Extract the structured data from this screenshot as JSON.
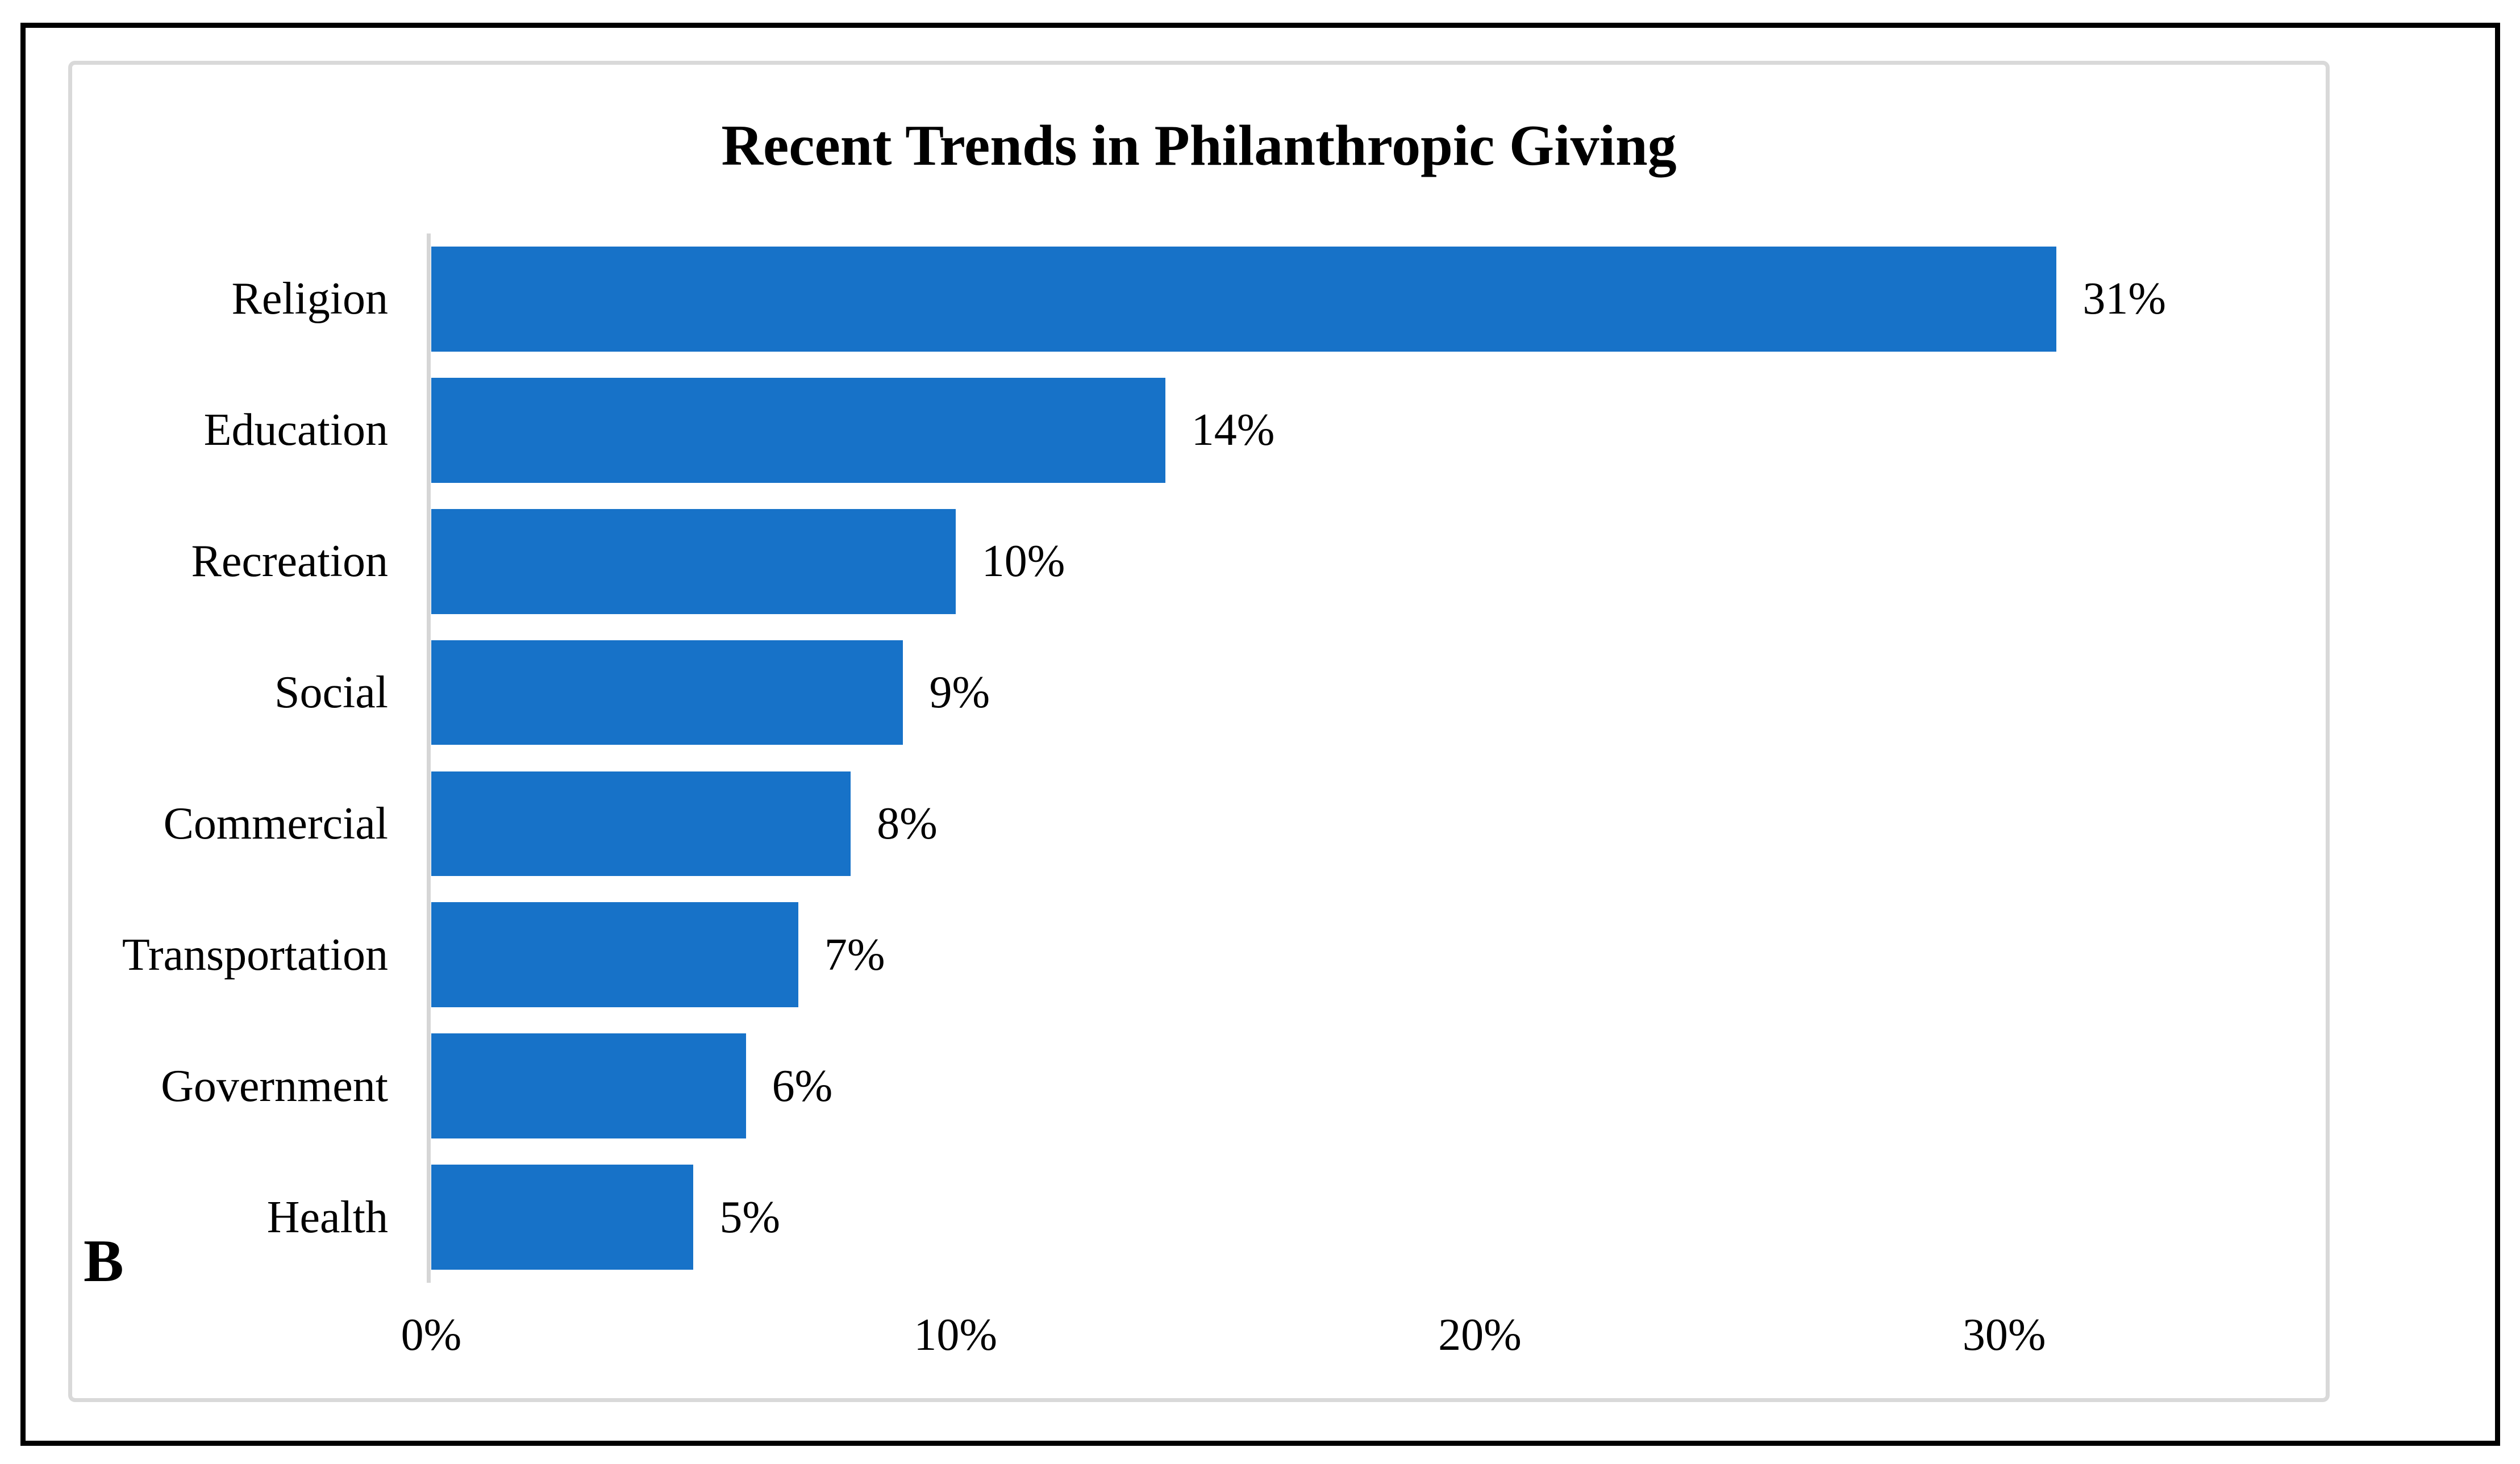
{
  "figure": {
    "panel_label": "B",
    "background_color": "#FFFFFF",
    "outer_border_color": "#000000"
  },
  "chart_data": {
    "type": "bar",
    "orientation": "horizontal",
    "title": "Recent Trends in Philanthropic Giving",
    "categories": [
      "Religion",
      "Education",
      "Recreation",
      "Social",
      "Commercial",
      "Transportation",
      "Government",
      "Health"
    ],
    "values": [
      31,
      14,
      10,
      9,
      8,
      7,
      6,
      5
    ],
    "value_labels": [
      "31%",
      "14%",
      "10%",
      "9%",
      "8%",
      "7%",
      "6%",
      "5%"
    ],
    "x_tick_values": [
      0,
      10,
      20,
      30
    ],
    "x_tick_labels": [
      "0%",
      "10%",
      "20%",
      "30%"
    ],
    "xlim": [
      0,
      36.1
    ],
    "xlabel": "",
    "ylabel": "",
    "grid": false,
    "legend": false,
    "bar_color": "#1772C8",
    "axis_line_color": "#D6D6D6",
    "frame_border_color": "#D9D9D9",
    "text_color": "#000000"
  }
}
